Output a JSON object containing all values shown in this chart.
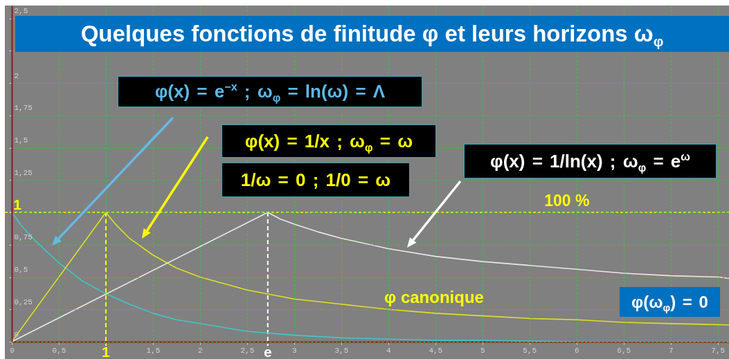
{
  "chart_data": {
    "type": "line",
    "title": "Quelques fonctions de finitude φ et leurs horizons ω$_{φ}$",
    "xlim": [
      0,
      7.62
    ],
    "ylim": [
      0,
      2.6
    ],
    "xticks": [
      0,
      {
        "value": 0.5,
        "label": "0,5"
      },
      {
        "value": 1,
        "label": null
      },
      {
        "value": 1.5,
        "label": "1,5"
      },
      2,
      {
        "value": 2.5,
        "label": "2,5"
      },
      3,
      {
        "value": 3.5,
        "label": "3,5"
      },
      4,
      {
        "value": 4.5,
        "label": "4,5"
      },
      5,
      {
        "value": 5.5,
        "label": "5,5"
      },
      6,
      {
        "value": 6.5,
        "label": "6,5"
      },
      7,
      {
        "value": 7.5,
        "label": "7,5"
      }
    ],
    "yticks": [
      0,
      {
        "value": 0.25,
        "label": "0,25"
      },
      {
        "value": 0.5,
        "label": "0,5"
      },
      {
        "value": 0.75,
        "label": "0,75"
      },
      {
        "value": 1,
        "label": null
      },
      {
        "value": 1.25,
        "label": "1,25"
      },
      {
        "value": 1.5,
        "label": "1,5"
      },
      {
        "value": 1.75,
        "label": "1,75"
      },
      2,
      {
        "value": 2.25,
        "label": null
      },
      {
        "value": 2.5,
        "label": "2,5"
      }
    ],
    "grid": true,
    "series": [
      {
        "color": "#3ec8c8",
        "x": [
          0,
          0,
          0.1,
          0.25,
          0.5,
          0.75,
          1,
          1.25,
          1.5,
          1.75,
          2,
          2.5,
          3,
          3.5,
          4,
          4.5,
          5,
          6,
          7,
          7.62
        ],
        "values": [
          0,
          1,
          0.9,
          0.78,
          0.61,
          0.47,
          0.37,
          0.29,
          0.22,
          0.17,
          0.14,
          0.08,
          0.05,
          0.03,
          0.02,
          0.01,
          0.01,
          0,
          0,
          0
        ]
      },
      {
        "color": "#e0e020",
        "x": [
          0,
          1,
          1.1,
          1.25,
          1.5,
          1.75,
          2,
          2.5,
          3,
          3.5,
          4,
          4.5,
          5,
          5.5,
          6,
          6.5,
          7,
          7.62
        ],
        "values": [
          0,
          1,
          0.91,
          0.8,
          0.67,
          0.57,
          0.5,
          0.4,
          0.33,
          0.29,
          0.25,
          0.22,
          0.2,
          0.18,
          0.17,
          0.15,
          0.14,
          0.13
        ]
      },
      {
        "color": "#e8e8e8",
        "x": [
          0,
          2.72,
          2.85,
          3,
          3.25,
          3.5,
          4,
          4.5,
          5,
          5.5,
          6,
          6.5,
          7,
          7.5,
          7.62
        ],
        "values": [
          0,
          1,
          0.95,
          0.91,
          0.85,
          0.8,
          0.72,
          0.66,
          0.62,
          0.59,
          0.56,
          0.53,
          0.51,
          0.5,
          0.49
        ]
      }
    ],
    "ref_lines": [
      {
        "axis": "y",
        "value": 1,
        "label": "100 %",
        "color": "#ffff00",
        "line_style": "dashed"
      },
      {
        "axis": "x",
        "value": 1,
        "label": "1",
        "color": "#ffff00",
        "line_style": "dashed"
      },
      {
        "axis": "x",
        "value": 2.72,
        "label": "e",
        "color": "#ffffff",
        "line_style": "dashed"
      }
    ],
    "annotations": [
      "φ(x) = e$^{−x}$ ; ω$_{φ}$ = ln(ω) = Λ",
      "φ(x) = 1/x ; ω$_{φ}$ = ω",
      "1/ω = 0 ; 1/0 = ω",
      "φ(x) = 1/ln(x) ; ω$_{φ}$ = e$^{ω}$",
      "φ canonique",
      "φ(ω$_{φ}$) = 0",
      "1"
    ]
  }
}
